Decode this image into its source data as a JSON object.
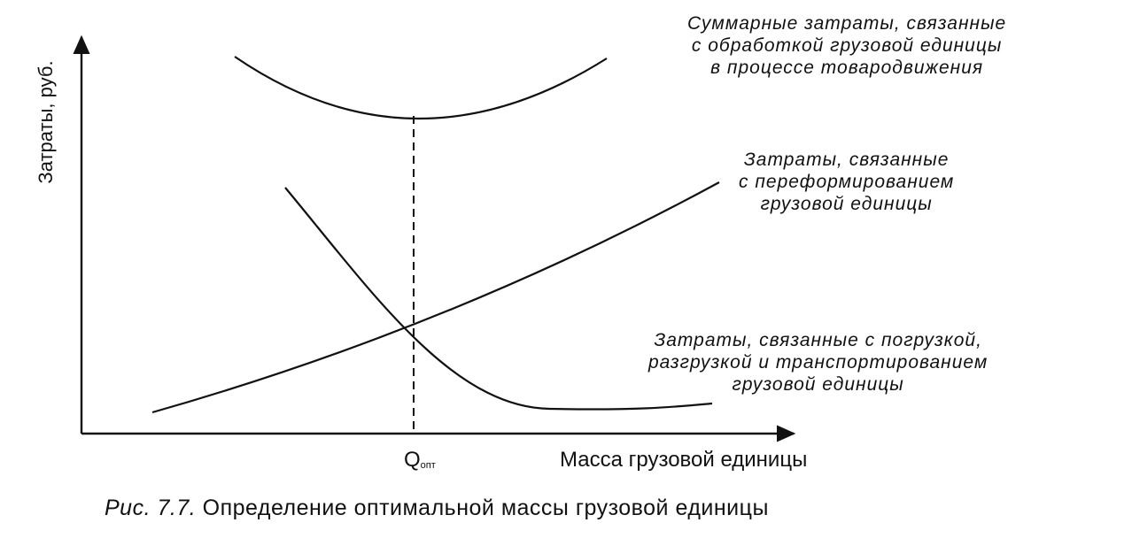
{
  "chart_data": {
    "type": "line",
    "title": "",
    "xlabel": "Масса грузовой единицы",
    "ylabel": "Затраты, руб.",
    "x_marker": {
      "label_main": "Q",
      "label_sub": "опт"
    },
    "series": [
      {
        "name_lines": [
          "Суммарные затраты, связанные",
          "с обработкой грузовой единицы",
          "в процессе товародвижения"
        ]
      },
      {
        "name_lines": [
          "Затраты, связанные",
          "с переформированием",
          "грузовой единицы"
        ]
      },
      {
        "name_lines": [
          "Затраты, связанные с погрузкой,",
          "разгрузкой и транспортированием",
          "грузовой единицы"
        ]
      }
    ],
    "grid": false
  },
  "caption": {
    "figure": "Рис. 7.7.",
    "text": "Определение оптимальной массы грузовой единицы"
  }
}
